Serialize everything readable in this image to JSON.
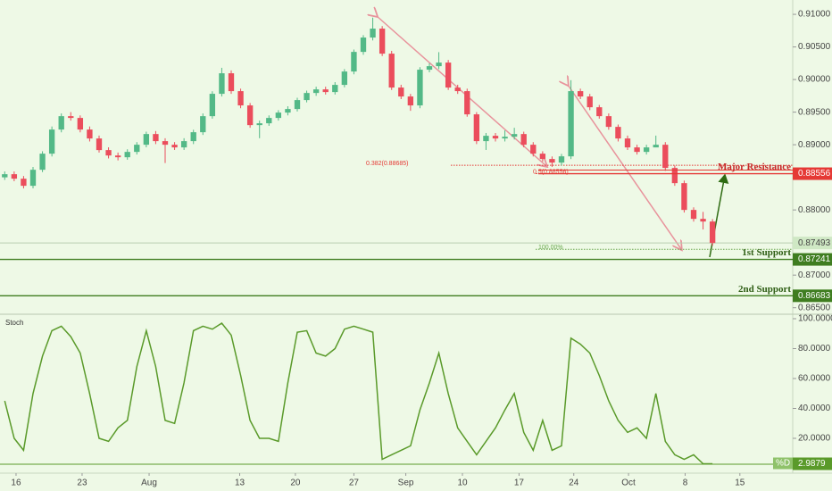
{
  "chart_data": [
    {
      "type": "candlestick",
      "x": [
        0,
        1,
        2,
        3,
        4,
        5,
        6,
        7,
        8,
        9,
        10,
        11,
        12,
        13,
        14,
        15,
        16,
        17,
        18,
        19,
        20,
        21,
        22,
        23,
        24,
        25,
        26,
        27,
        28,
        29,
        30,
        31,
        32,
        33,
        34,
        35,
        36,
        37,
        38,
        39,
        40,
        41,
        42,
        43,
        44,
        45,
        46,
        47,
        48,
        49,
        50,
        51,
        52,
        53,
        54,
        55,
        56,
        57,
        58,
        59,
        60,
        61,
        62,
        63,
        64,
        65,
        66,
        67,
        68,
        69,
        70,
        71,
        72,
        73,
        74,
        75
      ],
      "open": [
        0.885,
        0.88548,
        0.88479,
        0.8837,
        0.88616,
        0.88863,
        0.89233,
        0.89438,
        0.89411,
        0.89233,
        0.89096,
        0.88918,
        0.88835,
        0.88808,
        0.8889,
        0.89,
        0.89164,
        0.89055,
        0.89,
        0.88959,
        0.89055,
        0.89192,
        0.89438,
        0.89781,
        0.90096,
        0.89822,
        0.89603,
        0.89301,
        0.89329,
        0.89411,
        0.89493,
        0.89548,
        0.89685,
        0.89794,
        0.89849,
        0.89808,
        0.89918,
        0.90123,
        0.90424,
        0.90644,
        0.90781,
        0.90397,
        0.89877,
        0.8974,
        0.89603,
        0.90151,
        0.90205,
        0.9026,
        0.89877,
        0.89822,
        0.89466,
        0.89055,
        0.89137,
        0.89096,
        0.89123,
        0.89164,
        0.89,
        0.88863,
        0.88781,
        0.88726,
        0.88822,
        0.89822,
        0.8974,
        0.89575,
        0.89438,
        0.89274,
        0.89096,
        0.88959,
        0.8889,
        0.88959,
        0.89,
        0.88644,
        0.88411,
        0.88,
        0.87863,
        0.87822
      ],
      "high": [
        0.8859,
        0.8859,
        0.8852,
        0.8866,
        0.889,
        0.8928,
        0.8948,
        0.895,
        0.8945,
        0.8928,
        0.8914,
        0.8896,
        0.8888,
        0.8893,
        0.8904,
        0.892,
        0.8921,
        0.891,
        0.8904,
        0.891,
        0.8923,
        0.8948,
        0.8982,
        0.9018,
        0.9014,
        0.8986,
        0.8964,
        0.8937,
        0.8945,
        0.8953,
        0.8959,
        0.8972,
        0.8983,
        0.8989,
        0.8989,
        0.8996,
        0.9016,
        0.9046,
        0.9068,
        0.9095,
        0.9082,
        0.9044,
        0.8992,
        0.8978,
        0.9019,
        0.9025,
        0.9042,
        0.903,
        0.8992,
        0.8986,
        0.895,
        0.8918,
        0.8918,
        0.8922,
        0.8926,
        0.892,
        0.8904,
        0.889,
        0.8882,
        0.8886,
        0.8999,
        0.8986,
        0.8978,
        0.8961,
        0.8948,
        0.8931,
        0.8914,
        0.89,
        0.89,
        0.8914,
        0.8904,
        0.8868,
        0.8845,
        0.8804,
        0.8797,
        0.8786
      ],
      "low": [
        0.8846,
        0.8844,
        0.8833,
        0.8833,
        0.8858,
        0.8882,
        0.8919,
        0.8937,
        0.8919,
        0.8905,
        0.8888,
        0.8879,
        0.8876,
        0.8877,
        0.8885,
        0.8896,
        0.8901,
        0.8872,
        0.8892,
        0.8892,
        0.8901,
        0.8915,
        0.894,
        0.8974,
        0.8978,
        0.8956,
        0.8926,
        0.891,
        0.8929,
        0.8937,
        0.8945,
        0.8951,
        0.8965,
        0.8975,
        0.8977,
        0.8977,
        0.8988,
        0.9008,
        0.9038,
        0.906,
        0.9036,
        0.8984,
        0.897,
        0.8952,
        0.8956,
        0.9011,
        0.9016,
        0.8984,
        0.8978,
        0.8943,
        0.8901,
        0.8892,
        0.8905,
        0.8905,
        0.8908,
        0.8896,
        0.8882,
        0.8874,
        0.8866,
        0.8868,
        0.8878,
        0.897,
        0.8953,
        0.894,
        0.8923,
        0.8905,
        0.8892,
        0.8885,
        0.8885,
        0.8896,
        0.886,
        0.8837,
        0.8796,
        0.8782,
        0.877,
        0.8745
      ],
      "close": [
        0.88548,
        0.88479,
        0.8837,
        0.88616,
        0.88863,
        0.89233,
        0.89438,
        0.89411,
        0.89233,
        0.89096,
        0.88918,
        0.88835,
        0.88808,
        0.8889,
        0.89,
        0.89164,
        0.89055,
        0.89,
        0.88959,
        0.89055,
        0.89192,
        0.89438,
        0.89781,
        0.90096,
        0.89822,
        0.89603,
        0.89301,
        0.89329,
        0.89411,
        0.89493,
        0.89548,
        0.89685,
        0.89794,
        0.89849,
        0.89808,
        0.89918,
        0.90123,
        0.90424,
        0.90644,
        0.90781,
        0.90397,
        0.89877,
        0.8974,
        0.89603,
        0.90151,
        0.90205,
        0.9026,
        0.89877,
        0.89822,
        0.89466,
        0.89055,
        0.89137,
        0.89096,
        0.89123,
        0.89164,
        0.89,
        0.88863,
        0.88781,
        0.88726,
        0.88822,
        0.89822,
        0.8974,
        0.89575,
        0.89438,
        0.89274,
        0.89096,
        0.88959,
        0.8889,
        0.88959,
        0.89,
        0.88644,
        0.88411,
        0.88,
        0.87863,
        0.87822,
        0.87493
      ],
      "up_color": "#53b987",
      "down_color": "#eb4d5c",
      "xlim": [
        -0.5,
        83.5
      ],
      "ylim": [
        0.864,
        0.9122
      ],
      "yticks": [
        {
          "value": 0.91,
          "label": "0.91000"
        },
        {
          "value": 0.905,
          "label": "0.90500"
        },
        {
          "value": 0.9,
          "label": "0.90000"
        },
        {
          "value": 0.895,
          "label": "0.89500"
        },
        {
          "value": 0.89,
          "label": "0.89000"
        },
        {
          "value": 0.88,
          "label": "0.88000"
        },
        {
          "value": 0.87,
          "label": "0.87000"
        },
        {
          "value": 0.865,
          "label": "0.86500"
        }
      ],
      "levels": [
        {
          "name": "Major Resistance",
          "value": 0.88556,
          "label": "0.88556",
          "color": "#e53935"
        },
        {
          "name": "1st Support",
          "value": 0.87241,
          "label": "0.87241",
          "color": "#3f7d20"
        },
        {
          "name": "2nd Support",
          "value": 0.86683,
          "label": "0.86683",
          "color": "#3f7d20"
        }
      ],
      "fib_levels": [
        {
          "label": "0.382(0.88685)",
          "value": 0.88685,
          "color": "#e53935"
        },
        {
          "label": "0.5(0.88556)",
          "value": 0.88556,
          "color": "#e53935"
        },
        {
          "label": "100.00%",
          "value": 0.87397,
          "color": "#6aa84f"
        }
      ],
      "last_price": {
        "value": 0.87493,
        "label": "0.87493"
      }
    },
    {
      "type": "line",
      "title": "Stoch",
      "x": [
        0,
        1,
        2,
        3,
        4,
        5,
        6,
        7,
        8,
        9,
        10,
        11,
        12,
        13,
        14,
        15,
        16,
        17,
        18,
        19,
        20,
        21,
        22,
        23,
        24,
        25,
        26,
        27,
        28,
        29,
        30,
        31,
        32,
        33,
        34,
        35,
        36,
        37,
        38,
        39,
        40,
        41,
        42,
        43,
        44,
        45,
        46,
        47,
        48,
        49,
        50,
        51,
        52,
        53,
        54,
        55,
        56,
        57,
        58,
        59,
        60,
        61,
        62,
        63,
        64,
        65,
        66,
        67,
        68,
        69,
        70,
        71,
        72,
        73,
        74,
        75
      ],
      "series": [
        {
          "name": "%D",
          "color": "#5a9a2a",
          "values": [
            45,
            20,
            12,
            50,
            75,
            92,
            95,
            88,
            77,
            50,
            20,
            18,
            27,
            32,
            68,
            92,
            68,
            32,
            30,
            57,
            92,
            95,
            93,
            97,
            89,
            62,
            32,
            20,
            20,
            18,
            57,
            91,
            92,
            77,
            75,
            80,
            93,
            95,
            93,
            91,
            6,
            9,
            12,
            15,
            39,
            57,
            77,
            50,
            27,
            18,
            9,
            18,
            27,
            39,
            50,
            24,
            12,
            32,
            12,
            15,
            87,
            83,
            77,
            62,
            45,
            32,
            24,
            27,
            20,
            50,
            18,
            9,
            6,
            9,
            3,
            2.9879
          ]
        }
      ],
      "xlim": [
        -0.5,
        83.5
      ],
      "ylim": [
        0,
        100
      ],
      "yticks": [
        {
          "value": 100,
          "label": "100.0000"
        },
        {
          "value": 80,
          "label": "80.0000"
        },
        {
          "value": 60,
          "label": "60.0000"
        },
        {
          "value": 40,
          "label": "40.0000"
        },
        {
          "value": 20,
          "label": "20.0000"
        }
      ],
      "xticks": [
        {
          "value": 1.2,
          "label": "16"
        },
        {
          "value": 8.2,
          "label": "23"
        },
        {
          "value": 15.3,
          "label": "Aug"
        },
        {
          "value": 24.9,
          "label": "13"
        },
        {
          "value": 30.8,
          "label": "20"
        },
        {
          "value": 37.0,
          "label": "27"
        },
        {
          "value": 42.5,
          "label": "Sep"
        },
        {
          "value": 48.5,
          "label": "10"
        },
        {
          "value": 54.5,
          "label": "17"
        },
        {
          "value": 60.3,
          "label": "24"
        },
        {
          "value": 66.1,
          "label": "Oct"
        },
        {
          "value": 72.1,
          "label": "8"
        },
        {
          "value": 77.9,
          "label": "15"
        }
      ]
    }
  ]
}
